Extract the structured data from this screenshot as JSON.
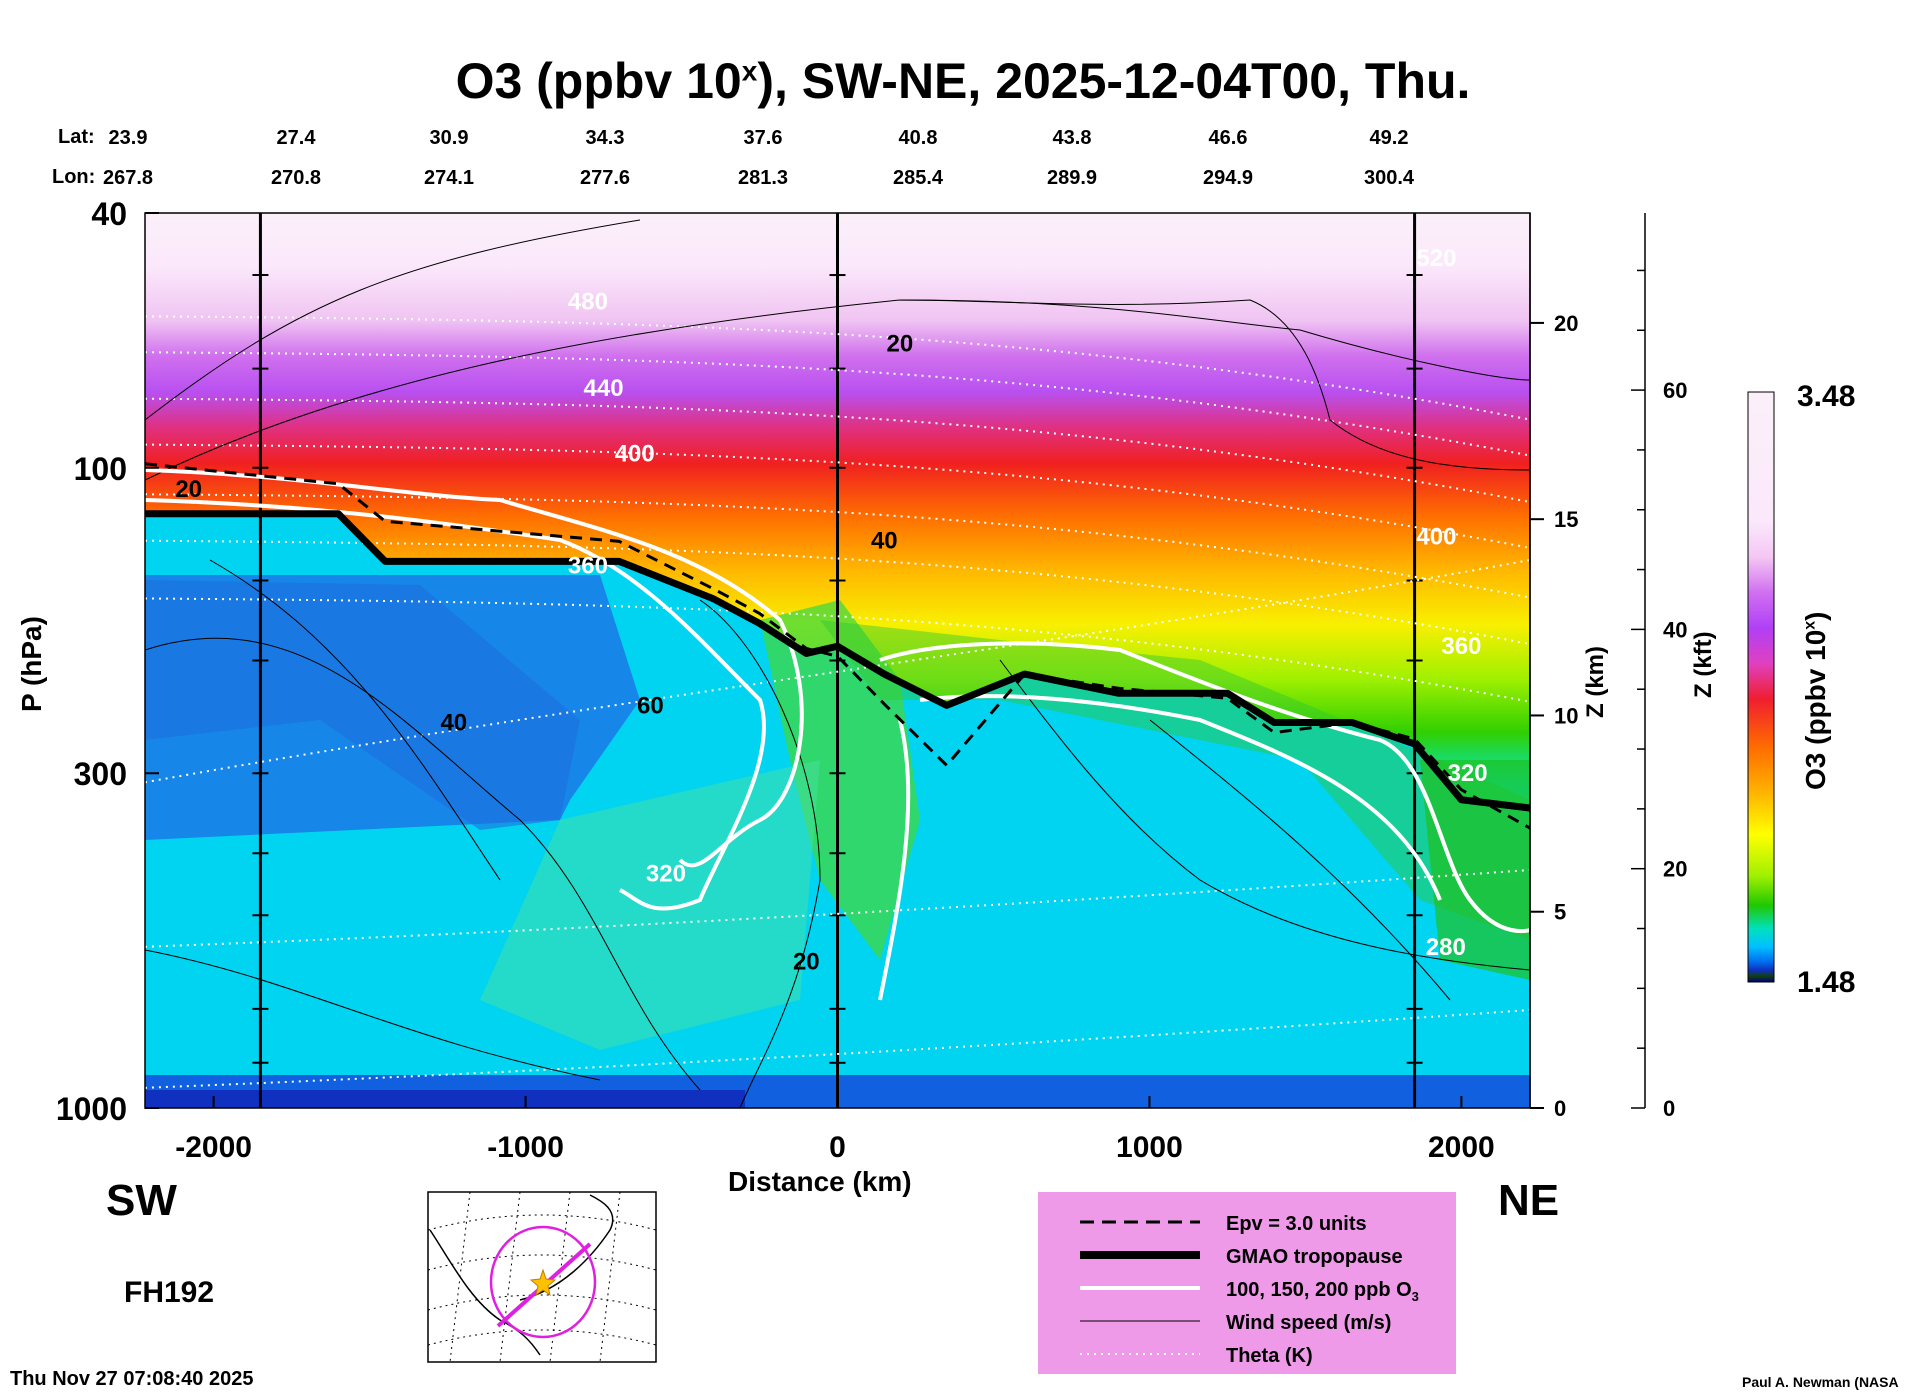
{
  "title": {
    "main": "O3 (ppbv 10",
    "sup": "x",
    "rest": "), SW-NE, 2025-12-04T00, Thu."
  },
  "header": {
    "lat_label": "Lat:",
    "lon_label": "Lon:",
    "lats": [
      "23.9",
      "27.4",
      "30.9",
      "34.3",
      "37.6",
      "40.8",
      "43.8",
      "46.6",
      "49.2"
    ],
    "lons": [
      "267.8",
      "270.8",
      "274.1",
      "277.6",
      "281.3",
      "285.4",
      "289.9",
      "294.9",
      "300.4"
    ]
  },
  "labels": {
    "sw": "SW",
    "ne": "NE",
    "forecast_hour": "FH192",
    "timestamp": "Thu Nov 27 07:08:40 2025",
    "credit": "Paul A. Newman (NASA"
  },
  "chart_data": {
    "type": "heatmap",
    "variable": "O3 (ppbv 10^x)",
    "xlabel": "Distance (km)",
    "ylabel": "P (hPa)",
    "xlim": [
      -2220,
      2220
    ],
    "ylim_hpa": [
      1000,
      40
    ],
    "y_scale": "log",
    "x_ticks": [
      -2000,
      -1000,
      0,
      1000,
      2000
    ],
    "y_ticks": [
      {
        "value": 40,
        "label": "40"
      },
      {
        "value": 100,
        "label": "100"
      },
      {
        "value": 300,
        "label": "300"
      },
      {
        "value": 1000,
        "label": "1000"
      }
    ],
    "z_km_ticks": [
      0,
      5,
      10,
      15,
      20
    ],
    "z_km_label": "Z (km)",
    "z_kft_ticks": [
      0,
      20,
      40,
      60
    ],
    "z_kft_label": "Z (kft)",
    "colorbar": {
      "label": "O3 (ppbv 10",
      "label_sup": "x",
      "label_end": ")",
      "min": 1.48,
      "max": 3.48,
      "min_label": "1.48",
      "max_label": "3.48"
    },
    "vertical_lines_km": [
      -1850,
      0,
      1850
    ],
    "tropopause_hpa": {
      "x": [
        -2220,
        -1600,
        -1450,
        -700,
        -400,
        -250,
        -100,
        0,
        150,
        350,
        600,
        900,
        1250,
        1400,
        1650,
        1850,
        2000,
        2220
      ],
      "p": [
        118,
        118,
        140,
        140,
        160,
        175,
        195,
        190,
        210,
        235,
        210,
        225,
        225,
        250,
        250,
        270,
        330,
        340
      ]
    },
    "theta_contours": [
      {
        "label": "480",
        "x": -800,
        "p": 55
      },
      {
        "label": "440",
        "x": -750,
        "p": 75
      },
      {
        "label": "400",
        "x": -650,
        "p": 95
      },
      {
        "label": "360",
        "x": -800,
        "p": 142
      },
      {
        "label": "320",
        "x": -550,
        "p": 430
      },
      {
        "label": "280",
        "x": 1950,
        "p": 560
      },
      {
        "label": "520",
        "x": 1920,
        "p": 47
      },
      {
        "label": "400",
        "x": 1920,
        "p": 128
      },
      {
        "label": "360",
        "x": 2000,
        "p": 190
      },
      {
        "label": "320",
        "x": 2020,
        "p": 300
      }
    ],
    "wind_labels": [
      {
        "label": "20",
        "x": -2080,
        "p": 108
      },
      {
        "label": "20",
        "x": 200,
        "p": 64
      },
      {
        "label": "40",
        "x": 150,
        "p": 130
      },
      {
        "label": "40",
        "x": -1230,
        "p": 250
      },
      {
        "label": "60",
        "x": -600,
        "p": 235
      },
      {
        "label": "20",
        "x": -100,
        "p": 590
      }
    ],
    "legend": [
      {
        "style": "dashed",
        "label": "Epv = 3.0 units"
      },
      {
        "style": "thick",
        "label": "GMAO tropopause"
      },
      {
        "style": "white",
        "label": "100, 150, 200 ppb O",
        "sub": "3"
      },
      {
        "style": "thin",
        "label": "Wind speed (m/s)"
      },
      {
        "style": "dotted",
        "label": "Theta (K)"
      }
    ]
  },
  "colors": {
    "legend_bg": "#ee9ae8",
    "tropopause": "#000000",
    "o3_contour": "#ffffff"
  }
}
